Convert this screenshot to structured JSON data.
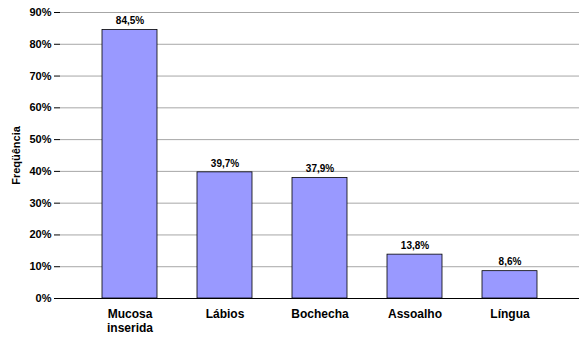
{
  "chart_data": {
    "type": "bar",
    "y_label": "Freqüência",
    "categories": [
      "Mucosa\ninserida",
      "Lábios",
      "Bochecha",
      "Assoalho",
      "Língua"
    ],
    "values": [
      84.5,
      39.7,
      37.9,
      13.8,
      8.6
    ],
    "value_labels": [
      "84,5%",
      "39,7%",
      "37,9%",
      "13,8%",
      "8,6%"
    ],
    "data_labels": true,
    "color": "#9999ff",
    "ylim": [
      0,
      90
    ],
    "yticks": [
      {
        "value": 0,
        "label": "0%"
      },
      {
        "value": 10,
        "label": "10%"
      },
      {
        "value": 20,
        "label": "20%"
      },
      {
        "value": 30,
        "label": "30%"
      },
      {
        "value": 40,
        "label": "40%"
      },
      {
        "value": 50,
        "label": "50%"
      },
      {
        "value": 60,
        "label": "60%"
      },
      {
        "value": 70,
        "label": "70%"
      },
      {
        "value": 80,
        "label": "80%"
      },
      {
        "value": 90,
        "label": "90%"
      }
    ],
    "grid": true
  }
}
